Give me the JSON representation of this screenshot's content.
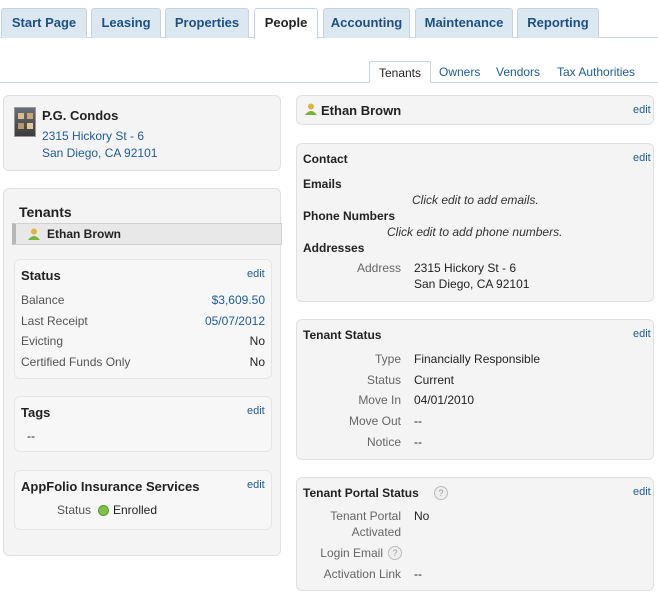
{
  "nav": {
    "tabs": [
      {
        "label": "Start Page"
      },
      {
        "label": "Leasing"
      },
      {
        "label": "Properties"
      },
      {
        "label": "People"
      },
      {
        "label": "Accounting"
      },
      {
        "label": "Maintenance"
      },
      {
        "label": "Reporting"
      }
    ],
    "active": "People"
  },
  "subnav": {
    "tabs": [
      {
        "label": "Tenants"
      },
      {
        "label": "Owners"
      },
      {
        "label": "Vendors"
      },
      {
        "label": "Tax Authorities"
      }
    ],
    "active": "Tenants"
  },
  "property": {
    "name": "P.G. Condos",
    "address_line1": "2315 Hickory St - 6",
    "address_line2": "San Diego, CA 92101"
  },
  "tenants_panel": {
    "title": "Tenants",
    "tenant_name": "Ethan Brown"
  },
  "status": {
    "title": "Status",
    "edit": "edit",
    "balance_label": "Balance",
    "balance_value": "$3,609.50",
    "last_receipt_label": "Last Receipt",
    "last_receipt_value": "05/07/2012",
    "evicting_label": "Evicting",
    "evicting_value": "No",
    "certified_label": "Certified Funds Only",
    "certified_value": "No"
  },
  "tags": {
    "title": "Tags",
    "edit": "edit",
    "value": "--"
  },
  "insurance": {
    "title": "AppFolio Insurance Services",
    "edit": "edit",
    "status_label": "Status",
    "status_value": "Enrolled",
    "status_color": "#7cc34a"
  },
  "header_right": {
    "tenant_name": "Ethan Brown",
    "edit": "edit"
  },
  "contact": {
    "title": "Contact",
    "edit": "edit",
    "emails_label": "Emails",
    "emails_hint": "Click edit to add emails.",
    "phones_label": "Phone Numbers",
    "phones_hint": "Click edit to add phone numbers.",
    "addresses_label": "Addresses",
    "address_label": "Address",
    "address_line1": "2315 Hickory St - 6",
    "address_line2": "San Diego, CA 92101"
  },
  "tenant_status": {
    "title": "Tenant Status",
    "edit": "edit",
    "type_label": "Type",
    "type_value": "Financially Responsible",
    "status_label": "Status",
    "status_value": "Current",
    "move_in_label": "Move In",
    "move_in_value": "04/01/2010",
    "move_out_label": "Move Out",
    "move_out_value": "--",
    "notice_label": "Notice",
    "notice_value": "--"
  },
  "portal": {
    "title": "Tenant Portal Status",
    "edit": "edit",
    "help": "?",
    "activated_label_1": "Tenant Portal",
    "activated_label_2": "Activated",
    "activated_value": "No",
    "login_label": "Login Email",
    "activation_label": "Activation Link",
    "activation_value": "--"
  },
  "colors": {
    "link": "#1d5c99",
    "tab_bg": "#dce8f1",
    "panel_bg": "#f4f4f4"
  }
}
